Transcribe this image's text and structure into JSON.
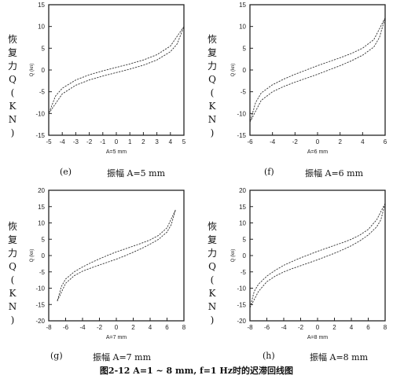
{
  "figure_caption": "图2-12 A=1 ~ 8 mm, f=1 Hz时的迟滞回线图",
  "panels": [
    {
      "letter": "(e)",
      "caption": "振幅 A=5 mm",
      "side_label": [
        "恢",
        "复",
        "力",
        "Q",
        "(",
        "K",
        "N",
        ")"
      ]
    },
    {
      "letter": "(f)",
      "caption": "振幅 A=6 mm",
      "side_label": [
        "恢",
        "复",
        "力",
        "Q",
        "(",
        "K",
        "N",
        ")"
      ]
    },
    {
      "letter": "(g)",
      "caption": "振幅 A=7 mm",
      "side_label": [
        "恢",
        "复",
        "力",
        "Q",
        "(",
        "K",
        "N",
        ")"
      ]
    },
    {
      "letter": "(h)",
      "caption": "振幅 A=8 mm",
      "side_label": [
        "恢",
        "复",
        "力",
        "Q",
        "(",
        "K",
        "N",
        ")"
      ]
    }
  ],
  "chart_data": [
    {
      "type": "line",
      "xlabel": "A=5 mm",
      "ylabel": "Q (kn)",
      "xlim": [
        -5,
        5
      ],
      "ylim": [
        -15,
        15
      ],
      "xticks": [
        -5,
        -4,
        -3,
        -2,
        -1,
        0,
        1,
        2,
        3,
        4,
        5
      ],
      "yticks": [
        -15,
        -10,
        -5,
        0,
        5,
        10,
        15
      ],
      "amplitude": 5,
      "peak_force": 10,
      "series": [
        {
          "x": [
            -5,
            -4,
            -3,
            -2,
            -1,
            0,
            1,
            2,
            3,
            4,
            4.5,
            5
          ],
          "y": [
            -10,
            -5.5,
            -3.5,
            -2.3,
            -1.4,
            -0.6,
            0.2,
            1.1,
            2.3,
            4.2,
            6,
            10
          ]
        },
        {
          "x": [
            5,
            4,
            3,
            2,
            1,
            0,
            -1,
            -2,
            -3,
            -4,
            -4.5,
            -5
          ],
          "y": [
            10,
            5.5,
            3.5,
            2.3,
            1.4,
            0.6,
            -0.2,
            -1.1,
            -2.3,
            -4.2,
            -6,
            -10
          ]
        }
      ]
    },
    {
      "type": "line",
      "xlabel": "A=6 mm",
      "ylabel": "Q (kn)",
      "xlim": [
        -6,
        6
      ],
      "ylim": [
        -15,
        15
      ],
      "xticks": [
        -6,
        -4,
        -2,
        0,
        2,
        4,
        6
      ],
      "yticks": [
        -15,
        -10,
        -5,
        0,
        5,
        10,
        15
      ],
      "amplitude": 6,
      "peak_force": 12,
      "series": [
        {
          "x": [
            -6,
            -5,
            -4,
            -3,
            -2,
            -1,
            0,
            1,
            2,
            3,
            4,
            5,
            5.5,
            6
          ],
          "y": [
            -12,
            -7,
            -5,
            -3.8,
            -2.8,
            -1.9,
            -1,
            0,
            1,
            2.1,
            3.4,
            5.3,
            7.5,
            12
          ]
        },
        {
          "x": [
            6,
            5,
            4,
            3,
            2,
            1,
            0,
            -1,
            -2,
            -3,
            -4,
            -5,
            -5.5,
            -6
          ],
          "y": [
            12,
            7,
            5,
            3.8,
            2.8,
            1.9,
            1,
            0,
            -1,
            -2.1,
            -3.4,
            -5.3,
            -7.5,
            -12
          ]
        }
      ]
    },
    {
      "type": "line",
      "xlabel": "A=7 mm",
      "ylabel": "Q (kn)",
      "xlim": [
        -8,
        8
      ],
      "ylim": [
        -20,
        20
      ],
      "xticks": [
        -8,
        -6,
        -4,
        -2,
        0,
        2,
        4,
        6,
        8
      ],
      "yticks": [
        -20,
        -15,
        -10,
        -5,
        0,
        5,
        10,
        15,
        20
      ],
      "amplitude": 7,
      "peak_force": 14,
      "series": [
        {
          "x": [
            -7,
            -6,
            -5,
            -4,
            -3,
            -2,
            -1,
            0,
            1,
            2,
            3,
            4,
            5,
            6,
            6.5,
            7
          ],
          "y": [
            -14,
            -8.5,
            -6.2,
            -4.8,
            -3.8,
            -2.9,
            -2,
            -1.1,
            -0.1,
            1,
            2.2,
            3.5,
            5,
            7.2,
            9.5,
            14
          ]
        },
        {
          "x": [
            7,
            6,
            5,
            4,
            3,
            2,
            1,
            0,
            -1,
            -2,
            -3,
            -4,
            -5,
            -6,
            -6.5,
            -7
          ],
          "y": [
            14,
            8.5,
            6.2,
            4.8,
            3.8,
            2.9,
            2,
            1.1,
            0.1,
            -1,
            -2.2,
            -3.5,
            -5,
            -7.2,
            -9.5,
            -14
          ]
        }
      ]
    },
    {
      "type": "line",
      "xlabel": "A=8 mm",
      "ylabel": "Q (kn)",
      "xlim": [
        -8,
        8
      ],
      "ylim": [
        -20,
        20
      ],
      "xticks": [
        -8,
        -6,
        -4,
        -2,
        0,
        2,
        4,
        6,
        8
      ],
      "yticks": [
        -20,
        -15,
        -10,
        -5,
        0,
        5,
        10,
        15,
        20
      ],
      "amplitude": 8,
      "peak_force": 16,
      "series": [
        {
          "x": [
            -8,
            -7,
            -6,
            -5,
            -4,
            -3,
            -2,
            -1,
            0,
            1,
            2,
            3,
            4,
            5,
            6,
            7,
            7.5,
            8
          ],
          "y": [
            -16,
            -11,
            -8,
            -6.3,
            -5,
            -4,
            -3.1,
            -2.2,
            -1.3,
            -0.3,
            0.7,
            1.8,
            3,
            4.5,
            6.3,
            8.8,
            11,
            16
          ]
        },
        {
          "x": [
            8,
            7,
            6,
            5,
            4,
            3,
            2,
            1,
            0,
            -1,
            -2,
            -3,
            -4,
            -5,
            -6,
            -7,
            -7.5,
            -8
          ],
          "y": [
            16,
            11,
            8,
            6.3,
            5,
            4,
            3.1,
            2.2,
            1.3,
            0.3,
            -0.7,
            -1.8,
            -3,
            -4.5,
            -6.3,
            -8.8,
            -11,
            -16
          ]
        }
      ]
    }
  ]
}
